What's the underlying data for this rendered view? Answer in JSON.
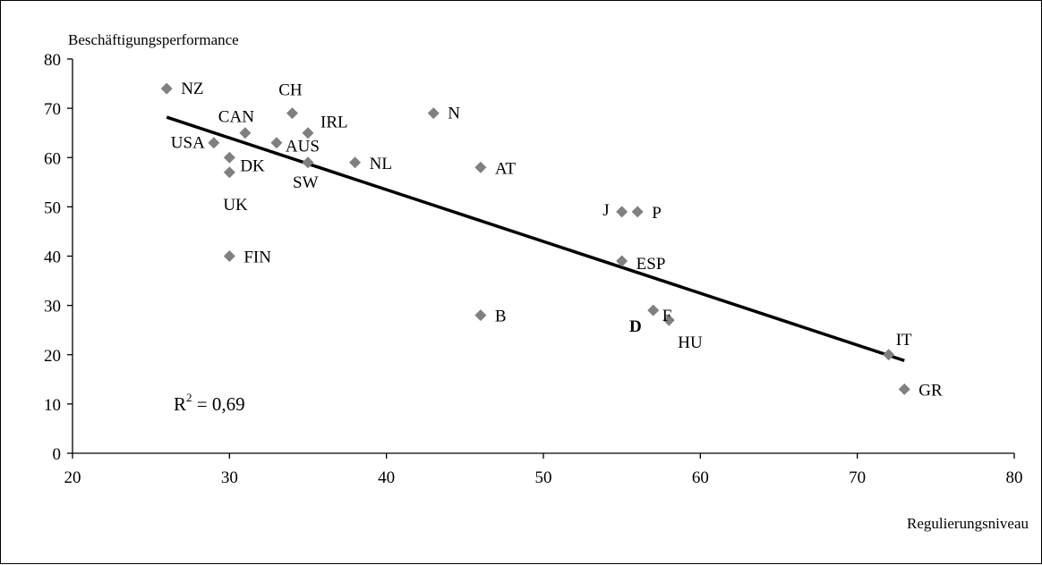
{
  "chart_data": {
    "type": "scatter",
    "ylabel": "Beschäftigungsperformance",
    "xlabel": "Regulierungsniveau",
    "xlim": [
      20,
      80
    ],
    "ylim": [
      0,
      80
    ],
    "xticks": [
      20,
      30,
      40,
      50,
      60,
      70,
      80
    ],
    "yticks": [
      0,
      10,
      20,
      30,
      40,
      50,
      60,
      70,
      80
    ],
    "grid": false,
    "marker_color": "#808080",
    "points": [
      {
        "label": "NZ",
        "x": 26,
        "y": 74
      },
      {
        "label": "CH",
        "x": 34,
        "y": 69
      },
      {
        "label": "N",
        "x": 43,
        "y": 69
      },
      {
        "label": "CAN",
        "x": 31,
        "y": 65
      },
      {
        "label": "IRL",
        "x": 35,
        "y": 65
      },
      {
        "label": "USA",
        "x": 29,
        "y": 63
      },
      {
        "label": "AUS",
        "x": 33,
        "y": 63
      },
      {
        "label": "DK",
        "x": 30,
        "y": 60
      },
      {
        "label": "SW",
        "x": 35,
        "y": 59
      },
      {
        "label": "NL",
        "x": 38,
        "y": 59
      },
      {
        "label": "AT",
        "x": 46,
        "y": 58
      },
      {
        "label": "UK",
        "x": 30,
        "y": 57
      },
      {
        "label": "J",
        "x": 55,
        "y": 49
      },
      {
        "label": "P",
        "x": 56,
        "y": 49
      },
      {
        "label": "FIN",
        "x": 30,
        "y": 40
      },
      {
        "label": "ESP",
        "x": 55,
        "y": 39
      },
      {
        "label": "D",
        "x": 57,
        "y": 29,
        "bold": true
      },
      {
        "label": "F",
        "x": 57,
        "y": 29
      },
      {
        "label": "B",
        "x": 46,
        "y": 28
      },
      {
        "label": "HU",
        "x": 58,
        "y": 27
      },
      {
        "label": "IT",
        "x": 72,
        "y": 20
      },
      {
        "label": "GR",
        "x": 73,
        "y": 13
      }
    ],
    "trendline": {
      "x": [
        26,
        73
      ],
      "y": [
        68.2,
        18.8
      ],
      "color": "#000000"
    },
    "annotation": {
      "r2_base": "R",
      "r2_exp": "2",
      "r2_text": " = 0,69"
    }
  }
}
